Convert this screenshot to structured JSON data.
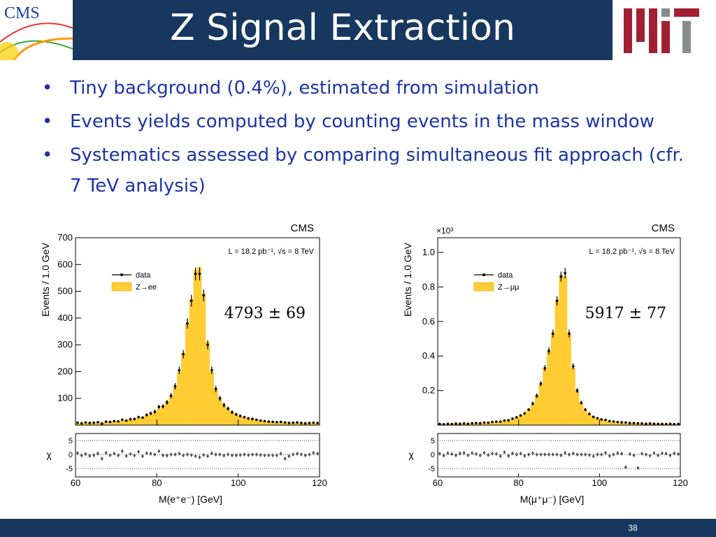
{
  "header": {
    "title": "Z Signal Extraction",
    "logo_text": "CMS"
  },
  "bullets": [
    "Tiny background (0.4%), estimated from simulation",
    "Events yields computed by counting events in the mass window",
    "Systematics assessed by comparing simultaneous fit approach (cfr. 7 TeV analysis)"
  ],
  "footer": {
    "page": "38"
  },
  "chart_data": [
    {
      "type": "histogram",
      "experiment": "CMS",
      "lumi_text": "L = 18.2 pb⁻¹, √s = 8 TeV",
      "yield_text": "4793 ± 69",
      "x_label": "M(e⁺e⁻) [GeV]",
      "y_label": "Events / 1.0 GeV",
      "chi_label": "χ",
      "bins": [
        60,
        61,
        62,
        63,
        64,
        65,
        66,
        67,
        68,
        69,
        70,
        71,
        72,
        73,
        74,
        75,
        76,
        77,
        78,
        79,
        80,
        81,
        82,
        83,
        84,
        85,
        86,
        87,
        88,
        89,
        90,
        91,
        92,
        93,
        94,
        95,
        96,
        97,
        98,
        99,
        100,
        101,
        102,
        103,
        104,
        105,
        106,
        107,
        108,
        109,
        110,
        111,
        112,
        113,
        114,
        115,
        116,
        117,
        118,
        119,
        120
      ],
      "xlim": [
        60,
        120
      ],
      "xticks": [
        60,
        80,
        100,
        120
      ],
      "ylim": [
        0,
        700
      ],
      "yticks": [
        100,
        200,
        300,
        400,
        500,
        600,
        700
      ],
      "series": [
        {
          "name": "data",
          "color": "#000000",
          "values": [
            9,
            7,
            10,
            8,
            9,
            11,
            6,
            13,
            12,
            15,
            14,
            20,
            17,
            22,
            23,
            30,
            28,
            38,
            44,
            50,
            68,
            70,
            85,
            110,
            145,
            205,
            265,
            380,
            465,
            565,
            565,
            485,
            300,
            205,
            135,
            100,
            75,
            62,
            48,
            40,
            34,
            30,
            25,
            23,
            20,
            17,
            15,
            13,
            12,
            11,
            12,
            10,
            8,
            9,
            10,
            8,
            7,
            8,
            9,
            8
          ],
          "errors": [
            3,
            3,
            3,
            3,
            3,
            3,
            2,
            4,
            3,
            4,
            4,
            4,
            4,
            5,
            5,
            5,
            5,
            6,
            7,
            7,
            8,
            8,
            9,
            10,
            12,
            14,
            16,
            19,
            22,
            24,
            24,
            22,
            17,
            14,
            12,
            10,
            9,
            8,
            7,
            6,
            6,
            5,
            5,
            5,
            4,
            4,
            4,
            4,
            3,
            3,
            3,
            3,
            3,
            3,
            3,
            3,
            3,
            3,
            3,
            3
          ]
        },
        {
          "name": "Z→ee",
          "color": "#ffcc33",
          "values": [
            8,
            8,
            9,
            9,
            10,
            10,
            11,
            12,
            13,
            14,
            15,
            17,
            19,
            21,
            24,
            27,
            31,
            36,
            42,
            50,
            60,
            72,
            88,
            110,
            145,
            200,
            270,
            380,
            470,
            580,
            590,
            490,
            310,
            200,
            135,
            100,
            78,
            62,
            50,
            42,
            35,
            30,
            26,
            23,
            20,
            18,
            16,
            14,
            13,
            12,
            11,
            10,
            10,
            9,
            9,
            8,
            8,
            8,
            7,
            7
          ]
        }
      ],
      "chi_values": [
        0.5,
        -0.3,
        0.2,
        -0.5,
        -0.3,
        0.4,
        -1.5,
        0.6,
        -0.3,
        0.3,
        -0.3,
        1.2,
        -0.5,
        0.2,
        -0.3,
        1.0,
        -0.6,
        0.5,
        0.3,
        0,
        1.2,
        -0.3,
        -0.4,
        0,
        0,
        0.3,
        -0.3,
        0,
        -0.2,
        -0.6,
        -1.0,
        -0.2,
        -0.6,
        0.4,
        0,
        0,
        -0.4,
        0,
        -0.3,
        -0.3,
        -0.2,
        0,
        -0.2,
        0,
        0,
        -0.2,
        -0.3,
        -0.3,
        -0.3,
        -0.3,
        0.3,
        -1.5,
        -0.6,
        0,
        0.3,
        0,
        -0.3,
        0,
        0.6,
        0.3
      ],
      "chi_ylim": [
        -8,
        7.5
      ],
      "chi_yticks": [
        -5,
        0,
        5
      ]
    },
    {
      "type": "histogram",
      "experiment": "CMS",
      "y_multiplier": "×10³",
      "lumi_text": "L = 18.2 pb⁻¹, √s = 8 TeV",
      "yield_text": "5917 ± 77",
      "x_label": "M(μ⁺μ⁻) [GeV]",
      "y_label": "Events / 1.0 GeV",
      "chi_label": "χ",
      "bins": [
        60,
        61,
        62,
        63,
        64,
        65,
        66,
        67,
        68,
        69,
        70,
        71,
        72,
        73,
        74,
        75,
        76,
        77,
        78,
        79,
        80,
        81,
        82,
        83,
        84,
        85,
        86,
        87,
        88,
        89,
        90,
        91,
        92,
        93,
        94,
        95,
        96,
        97,
        98,
        99,
        100,
        101,
        102,
        103,
        104,
        105,
        106,
        107,
        108,
        109,
        110,
        111,
        112,
        113,
        114,
        115,
        116,
        117,
        118,
        119,
        120
      ],
      "xlim": [
        60,
        120
      ],
      "xticks": [
        60,
        80,
        100,
        120
      ],
      "ylim": [
        0,
        1.085
      ],
      "yticks": [
        0.2,
        0.4,
        0.6,
        0.8,
        {
          "value": 1,
          "label": "1.0"
        }
      ],
      "series": [
        {
          "name": "data",
          "color": "#000000",
          "values": [
            0.007,
            0.005,
            0.008,
            0.006,
            0.009,
            0.008,
            0.01,
            0.008,
            0.011,
            0.012,
            0.011,
            0.015,
            0.014,
            0.018,
            0.02,
            0.02,
            0.027,
            0.028,
            0.037,
            0.045,
            0.056,
            0.068,
            0.09,
            0.125,
            0.17,
            0.24,
            0.33,
            0.43,
            0.53,
            0.72,
            0.86,
            0.88,
            0.53,
            0.34,
            0.2,
            0.13,
            0.09,
            0.065,
            0.048,
            0.04,
            0.033,
            0.03,
            0.023,
            0.021,
            0.018,
            0.016,
            0.015,
            0.012,
            0.012,
            0.011,
            0.01,
            0.008,
            0.01,
            0.008,
            0.007,
            0.007,
            0.006,
            0.008,
            0.006,
            0.007
          ],
          "errors": [
            0.003,
            0.003,
            0.003,
            0.003,
            0.003,
            0.003,
            0.003,
            0.003,
            0.003,
            0.003,
            0.003,
            0.004,
            0.004,
            0.004,
            0.004,
            0.004,
            0.005,
            0.005,
            0.006,
            0.007,
            0.007,
            0.008,
            0.009,
            0.011,
            0.013,
            0.015,
            0.018,
            0.021,
            0.023,
            0.027,
            0.029,
            0.03,
            0.023,
            0.018,
            0.014,
            0.011,
            0.009,
            0.008,
            0.007,
            0.006,
            0.006,
            0.005,
            0.005,
            0.005,
            0.004,
            0.004,
            0.004,
            0.003,
            0.003,
            0.003,
            0.003,
            0.003,
            0.003,
            0.003,
            0.003,
            0.003,
            0.003,
            0.003,
            0.003,
            0.003
          ]
        },
        {
          "name": "Z→μμ",
          "color": "#ffcc33",
          "values": [
            0.006,
            0.006,
            0.007,
            0.007,
            0.008,
            0.008,
            0.009,
            0.009,
            0.01,
            0.011,
            0.012,
            0.013,
            0.015,
            0.017,
            0.019,
            0.022,
            0.025,
            0.03,
            0.036,
            0.045,
            0.055,
            0.07,
            0.09,
            0.12,
            0.17,
            0.24,
            0.33,
            0.43,
            0.53,
            0.72,
            0.87,
            0.86,
            0.53,
            0.33,
            0.2,
            0.13,
            0.09,
            0.065,
            0.05,
            0.04,
            0.033,
            0.028,
            0.024,
            0.02,
            0.018,
            0.016,
            0.014,
            0.013,
            0.012,
            0.011,
            0.01,
            0.009,
            0.009,
            0.008,
            0.008,
            0.007,
            0.007,
            0.007,
            0.006,
            0.006
          ]
        }
      ],
      "chi_values": [
        0.3,
        -0.4,
        0.5,
        0.2,
        -0.3,
        0.4,
        0.6,
        -0.3,
        0.5,
        0.2,
        -0.3,
        0.6,
        -0.2,
        0.3,
        0.2,
        -0.6,
        0.8,
        -0.5,
        0.4,
        0,
        0.3,
        -0.5,
        0,
        0.4,
        0,
        0,
        0,
        0,
        0,
        0,
        -0.3,
        0.6,
        0,
        0.4,
        0,
        0,
        0,
        -0.2,
        -0.6,
        0,
        0,
        0.6,
        -0.5,
        0,
        0.5,
        0.3,
        -4.5,
        0.2,
        -0.3,
        -4.8,
        0.3,
        0,
        -0.4,
        0.5,
        -0.3,
        0.4,
        0.3,
        -0.3,
        0.4,
        0.2
      ],
      "chi_ylim": [
        -8,
        7.5
      ],
      "chi_yticks": [
        -5,
        0,
        5
      ]
    }
  ]
}
